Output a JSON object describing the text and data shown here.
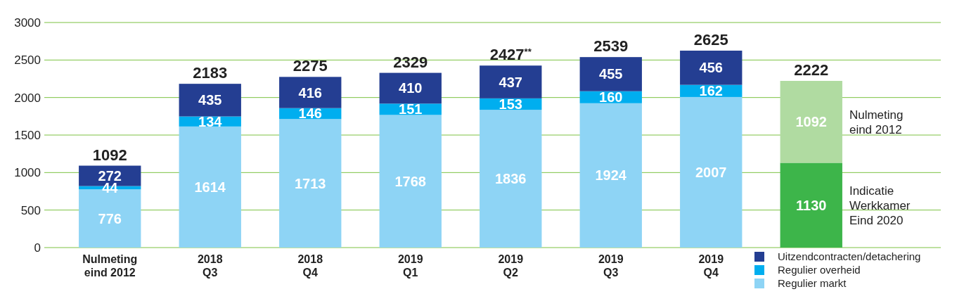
{
  "chart_data": {
    "type": "bar",
    "stacked": true,
    "categories": [
      "Nulmeting\neind 2012",
      "2018\nQ3",
      "2018\nQ4",
      "2019\nQ1",
      "2019\nQ2",
      "2019\nQ3",
      "2019\nQ4",
      null
    ],
    "series": [
      {
        "name": "Regulier markt",
        "color": "#8ed4f5",
        "values": [
          776,
          1614,
          1713,
          1768,
          1836,
          1924,
          2007,
          null
        ]
      },
      {
        "name": "Regulier overheid",
        "color": "#00aeef",
        "values": [
          44,
          134,
          146,
          151,
          153,
          160,
          162,
          null
        ]
      },
      {
        "name": "Uitzendcontracten/detachering",
        "color": "#243e92",
        "values": [
          272,
          435,
          416,
          410,
          437,
          455,
          456,
          null
        ]
      },
      {
        "name": "Indicatie Werkkamer Eind 2020",
        "color": "#3db54a",
        "values": [
          null,
          null,
          null,
          null,
          null,
          null,
          null,
          1130
        ]
      },
      {
        "name": "Nulmeting eind 2012",
        "color": "#b0dba1",
        "values": [
          null,
          null,
          null,
          null,
          null,
          null,
          null,
          1092
        ]
      }
    ],
    "totals": [
      "1092",
      "2183",
      "2275",
      "2329",
      "2427$^{**}$",
      "2539",
      "2625",
      "2222"
    ],
    "data_labels": true,
    "ylim": [
      0,
      3000
    ],
    "yticks": [
      0,
      500,
      1000,
      1500,
      2000,
      2500,
      3000
    ],
    "grid": "y",
    "legend": "bottom right"
  }
}
